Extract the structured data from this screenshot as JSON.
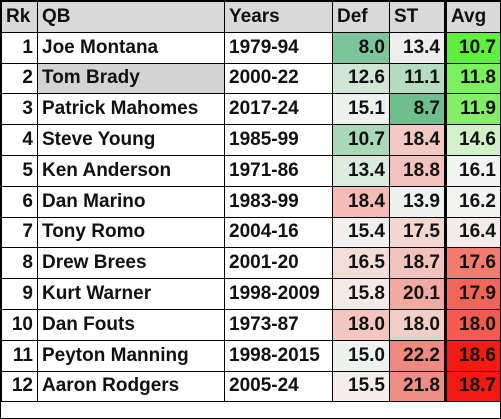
{
  "headers": [
    "Rk",
    "QB",
    "Years",
    "Def",
    "ST",
    "Avg"
  ],
  "highlight_row": 1,
  "rows": [
    {
      "rk": "1",
      "qb": "Joe Montana",
      "years": "1979-94",
      "def": "8.0",
      "st": "13.4",
      "avg": "10.7",
      "def_color": "#7cc59a",
      "st_color": "#ecefec",
      "avg_color": "#5fef3f"
    },
    {
      "rk": "2",
      "qb": "Tom Brady",
      "years": "2000-22",
      "def": "12.6",
      "st": "11.1",
      "avg": "11.8",
      "def_color": "#d1e6d7",
      "st_color": "#b5dcc0",
      "avg_color": "#7cf05e"
    },
    {
      "rk": "3",
      "qb": "Patrick Mahomes",
      "years": "2017-24",
      "def": "15.1",
      "st": "8.7",
      "avg": "11.9",
      "def_color": "#edf2ee",
      "st_color": "#6fbf8e",
      "avg_color": "#84ef66"
    },
    {
      "rk": "4",
      "qb": "Steve Young",
      "years": "1985-99",
      "def": "10.7",
      "st": "18.4",
      "avg": "14.6",
      "def_color": "#a9d7b7",
      "st_color": "#f2c9c4",
      "avg_color": "#d3f1c9"
    },
    {
      "rk": "5",
      "qb": "Ken Anderson",
      "years": "1971-86",
      "def": "13.4",
      "st": "18.8",
      "avg": "16.1",
      "def_color": "#dcebe0",
      "st_color": "#f2c2bc",
      "avg_color": "#f1f4f0"
    },
    {
      "rk": "6",
      "qb": "Dan Marino",
      "years": "1983-99",
      "def": "18.4",
      "st": "13.9",
      "avg": "16.2",
      "def_color": "#f3bdb6",
      "st_color": "#eef2ee",
      "avg_color": "#f3f3f1"
    },
    {
      "rk": "7",
      "qb": "Tony Romo",
      "years": "2004-16",
      "def": "15.4",
      "st": "17.5",
      "avg": "16.4",
      "def_color": "#f2f0ee",
      "st_color": "#f3d6d2",
      "avg_color": "#f3ebea"
    },
    {
      "rk": "8",
      "qb": "Drew Brees",
      "years": "2001-20",
      "def": "16.5",
      "st": "18.7",
      "avg": "17.6",
      "def_color": "#f4dcd8",
      "st_color": "#f2c3bd",
      "avg_color": "#f47b70"
    },
    {
      "rk": "9",
      "qb": "Kurt Warner",
      "years": "1998-2009",
      "def": "15.8",
      "st": "20.1",
      "avg": "17.9",
      "def_color": "#f3eae8",
      "st_color": "#f0aaa2",
      "avg_color": "#f46559"
    },
    {
      "rk": "10",
      "qb": "Dan Fouts",
      "years": "1973-87",
      "def": "18.0",
      "st": "18.0",
      "avg": "18.0",
      "def_color": "#f3c6c0",
      "st_color": "#f2cec9",
      "avg_color": "#f45a4e"
    },
    {
      "rk": "11",
      "qb": "Peyton Manning",
      "years": "1998-2015",
      "def": "15.0",
      "st": "22.2",
      "avg": "18.6",
      "def_color": "#eef2ef",
      "st_color": "#ee8a80",
      "avg_color": "#f21c12"
    },
    {
      "rk": "12",
      "qb": "Aaron Rodgers",
      "years": "2005-24",
      "def": "15.5",
      "st": "21.8",
      "avg": "18.7",
      "def_color": "#f3eeec",
      "st_color": "#ee8f86",
      "avg_color": "#f21a10"
    }
  ]
}
